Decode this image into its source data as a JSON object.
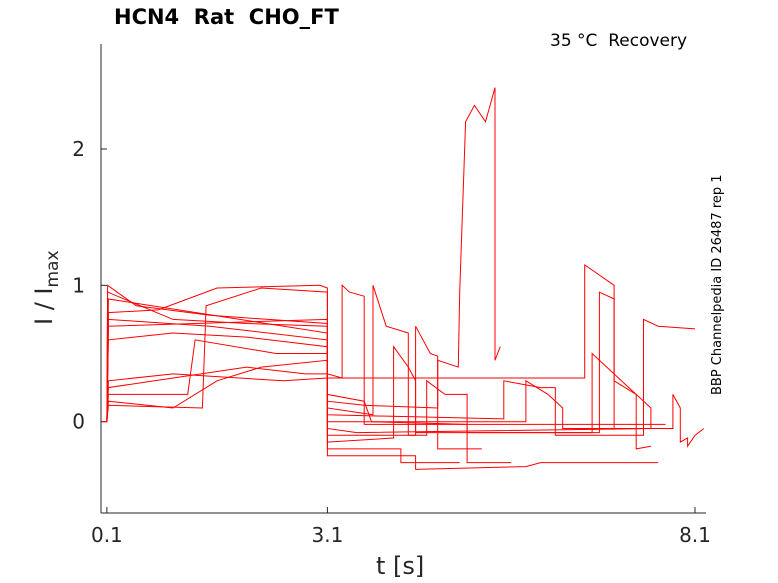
{
  "chart_data": {
    "type": "line",
    "title": "HCN4  Rat  CHO_FT",
    "annotation": "35 °C  Recovery",
    "side_label": "BBP Channelpedia ID 26487 rep 1",
    "xlabel": "t [s]",
    "ylabel_main": "I / I",
    "ylabel_sub": "max",
    "xlim": [
      0.02,
      8.25
    ],
    "ylim": [
      -0.67,
      2.77
    ],
    "xticks": [
      {
        "v": 0.1,
        "label": "0.1"
      },
      {
        "v": 3.1,
        "label": "3.1"
      },
      {
        "v": 8.1,
        "label": "8.1"
      }
    ],
    "yticks": [
      {
        "v": 0,
        "label": "0"
      },
      {
        "v": 1,
        "label": "1"
      },
      {
        "v": 2,
        "label": "2"
      }
    ],
    "grid": false,
    "line_color": "#ff0000",
    "series": [
      {
        "name": "trace-1",
        "points": [
          [
            0.03,
            0
          ],
          [
            0.1,
            0
          ],
          [
            0.11,
            1.0
          ],
          [
            0.5,
            0.85
          ],
          [
            1.5,
            0.78
          ],
          [
            3.1,
            0.72
          ],
          [
            3.1,
            0.15
          ],
          [
            3.6,
            0.12
          ],
          [
            4.6,
            0.1
          ],
          [
            4.6,
            0.45
          ],
          [
            4.88,
            0.4
          ],
          [
            4.9,
            0.95
          ],
          [
            4.98,
            2.2
          ],
          [
            5.1,
            2.32
          ],
          [
            5.25,
            2.2
          ],
          [
            5.38,
            2.45
          ],
          [
            5.38,
            0.45
          ],
          [
            5.45,
            0.55
          ]
        ]
      },
      {
        "name": "trace-2",
        "points": [
          [
            0.1,
            0
          ],
          [
            0.11,
            0.95
          ],
          [
            1.0,
            0.75
          ],
          [
            2.0,
            0.72
          ],
          [
            3.1,
            0.7
          ],
          [
            3.1,
            -0.05
          ],
          [
            3.5,
            -0.08
          ],
          [
            7.5,
            -0.05
          ]
        ]
      },
      {
        "name": "trace-3",
        "points": [
          [
            0.1,
            0
          ],
          [
            0.12,
            0.9
          ],
          [
            3.1,
            0.65
          ],
          [
            3.1,
            0.35
          ],
          [
            3.3,
            0.32
          ],
          [
            3.3,
            1.0
          ],
          [
            3.4,
            0.95
          ],
          [
            3.6,
            0.92
          ],
          [
            3.6,
            -0.02
          ],
          [
            7.7,
            -0.02
          ]
        ]
      },
      {
        "name": "trace-4",
        "points": [
          [
            0.1,
            0
          ],
          [
            0.12,
            0.75
          ],
          [
            1.5,
            0.7
          ],
          [
            3.1,
            0.6
          ],
          [
            3.1,
            -0.25
          ],
          [
            4.3,
            -0.25
          ],
          [
            4.3,
            -0.35
          ],
          [
            5.8,
            -0.33
          ],
          [
            6.0,
            -0.3
          ],
          [
            7.6,
            -0.3
          ]
        ]
      },
      {
        "name": "trace-5",
        "points": [
          [
            0.1,
            0
          ],
          [
            0.12,
            0.3
          ],
          [
            1.0,
            0.35
          ],
          [
            2.5,
            0.3
          ],
          [
            3.1,
            0.32
          ],
          [
            6.6,
            0.32
          ],
          [
            6.6,
            1.15
          ],
          [
            7.0,
            1.0
          ],
          [
            7.0,
            -0.05
          ],
          [
            7.6,
            -0.05
          ]
        ]
      },
      {
        "name": "trace-6",
        "points": [
          [
            0.1,
            0
          ],
          [
            0.12,
            0.12
          ],
          [
            1.4,
            0.1
          ],
          [
            1.45,
            0.85
          ],
          [
            2.2,
            0.98
          ],
          [
            3.1,
            0.95
          ],
          [
            3.1,
            0.2
          ],
          [
            3.6,
            0.15
          ],
          [
            3.7,
            0.0
          ],
          [
            5.0,
            -0.02
          ],
          [
            5.0,
            -0.3
          ],
          [
            5.6,
            -0.3
          ]
        ]
      },
      {
        "name": "trace-7",
        "points": [
          [
            0.1,
            0
          ],
          [
            0.12,
            0.2
          ],
          [
            1.2,
            0.2
          ],
          [
            1.3,
            0.6
          ],
          [
            2.4,
            0.5
          ],
          [
            3.1,
            0.5
          ],
          [
            3.1,
            0.05
          ],
          [
            5.5,
            0.02
          ],
          [
            5.5,
            0.3
          ],
          [
            6.0,
            0.25
          ],
          [
            6.2,
            0.25
          ],
          [
            6.2,
            -0.1
          ],
          [
            7.4,
            -0.1
          ],
          [
            7.4,
            0.75
          ],
          [
            7.6,
            0.7
          ],
          [
            8.1,
            0.68
          ]
        ]
      },
      {
        "name": "trace-8",
        "points": [
          [
            0.1,
            0
          ],
          [
            0.12,
            0.7
          ],
          [
            3.1,
            0.75
          ],
          [
            3.1,
            0.1
          ],
          [
            3.72,
            0.05
          ],
          [
            3.72,
            1.0
          ],
          [
            3.9,
            0.7
          ],
          [
            4.2,
            0.65
          ],
          [
            4.2,
            -0.1
          ],
          [
            4.3,
            -0.1
          ],
          [
            4.3,
            0.7
          ],
          [
            4.5,
            0.5
          ],
          [
            4.6,
            0.48
          ],
          [
            4.6,
            -0.2
          ],
          [
            5.2,
            -0.2
          ]
        ]
      },
      {
        "name": "trace-9",
        "points": [
          [
            0.1,
            0
          ],
          [
            0.12,
            0.25
          ],
          [
            2.0,
            0.4
          ],
          [
            2.8,
            0.35
          ],
          [
            3.1,
            0.35
          ],
          [
            3.1,
            -0.15
          ],
          [
            4.0,
            -0.12
          ],
          [
            4.0,
            0.55
          ],
          [
            4.2,
            0.4
          ],
          [
            4.3,
            0.3
          ],
          [
            4.3,
            -0.08
          ],
          [
            6.8,
            -0.08
          ],
          [
            6.8,
            0.95
          ],
          [
            7.0,
            0.9
          ],
          [
            7.0,
            0.3
          ],
          [
            7.3,
            0.2
          ],
          [
            7.5,
            0.1
          ],
          [
            7.5,
            -0.05
          ]
        ]
      },
      {
        "name": "trace-10",
        "points": [
          [
            0.1,
            0
          ],
          [
            0.12,
            0.15
          ],
          [
            1.0,
            0.1
          ],
          [
            1.6,
            0.3
          ],
          [
            2.2,
            0.4
          ],
          [
            3.1,
            0.45
          ],
          [
            3.1,
            0.0
          ],
          [
            5.8,
            0.0
          ],
          [
            5.8,
            0.3
          ],
          [
            6.1,
            0.2
          ],
          [
            6.3,
            0.1
          ],
          [
            6.3,
            -0.05
          ],
          [
            7.8,
            -0.05
          ],
          [
            7.8,
            0.2
          ],
          [
            7.9,
            0.1
          ],
          [
            7.9,
            -0.15
          ],
          [
            8.0,
            -0.12
          ],
          [
            8.0,
            -0.18
          ],
          [
            8.1,
            -0.1
          ],
          [
            8.22,
            -0.05
          ]
        ]
      },
      {
        "name": "trace-11",
        "points": [
          [
            0.1,
            0
          ],
          [
            0.12,
            0.6
          ],
          [
            1.0,
            0.65
          ],
          [
            2.0,
            0.62
          ],
          [
            3.1,
            0.55
          ],
          [
            3.1,
            -0.1
          ],
          [
            4.45,
            -0.1
          ],
          [
            4.45,
            0.3
          ],
          [
            4.7,
            0.2
          ],
          [
            5.0,
            0.2
          ],
          [
            5.0,
            -0.08
          ],
          [
            6.7,
            -0.08
          ],
          [
            6.7,
            0.5
          ],
          [
            7.2,
            0.25
          ],
          [
            7.3,
            0.2
          ],
          [
            7.3,
            -0.2
          ],
          [
            7.5,
            -0.18
          ]
        ]
      },
      {
        "name": "trace-12",
        "points": [
          [
            0.1,
            0
          ],
          [
            0.12,
            0.8
          ],
          [
            0.8,
            0.82
          ],
          [
            1.6,
            0.98
          ],
          [
            3.0,
            1.0
          ],
          [
            3.1,
            0.98
          ],
          [
            3.1,
            -0.2
          ],
          [
            4.1,
            -0.2
          ],
          [
            4.1,
            -0.3
          ],
          [
            4.9,
            -0.3
          ]
        ]
      }
    ]
  }
}
